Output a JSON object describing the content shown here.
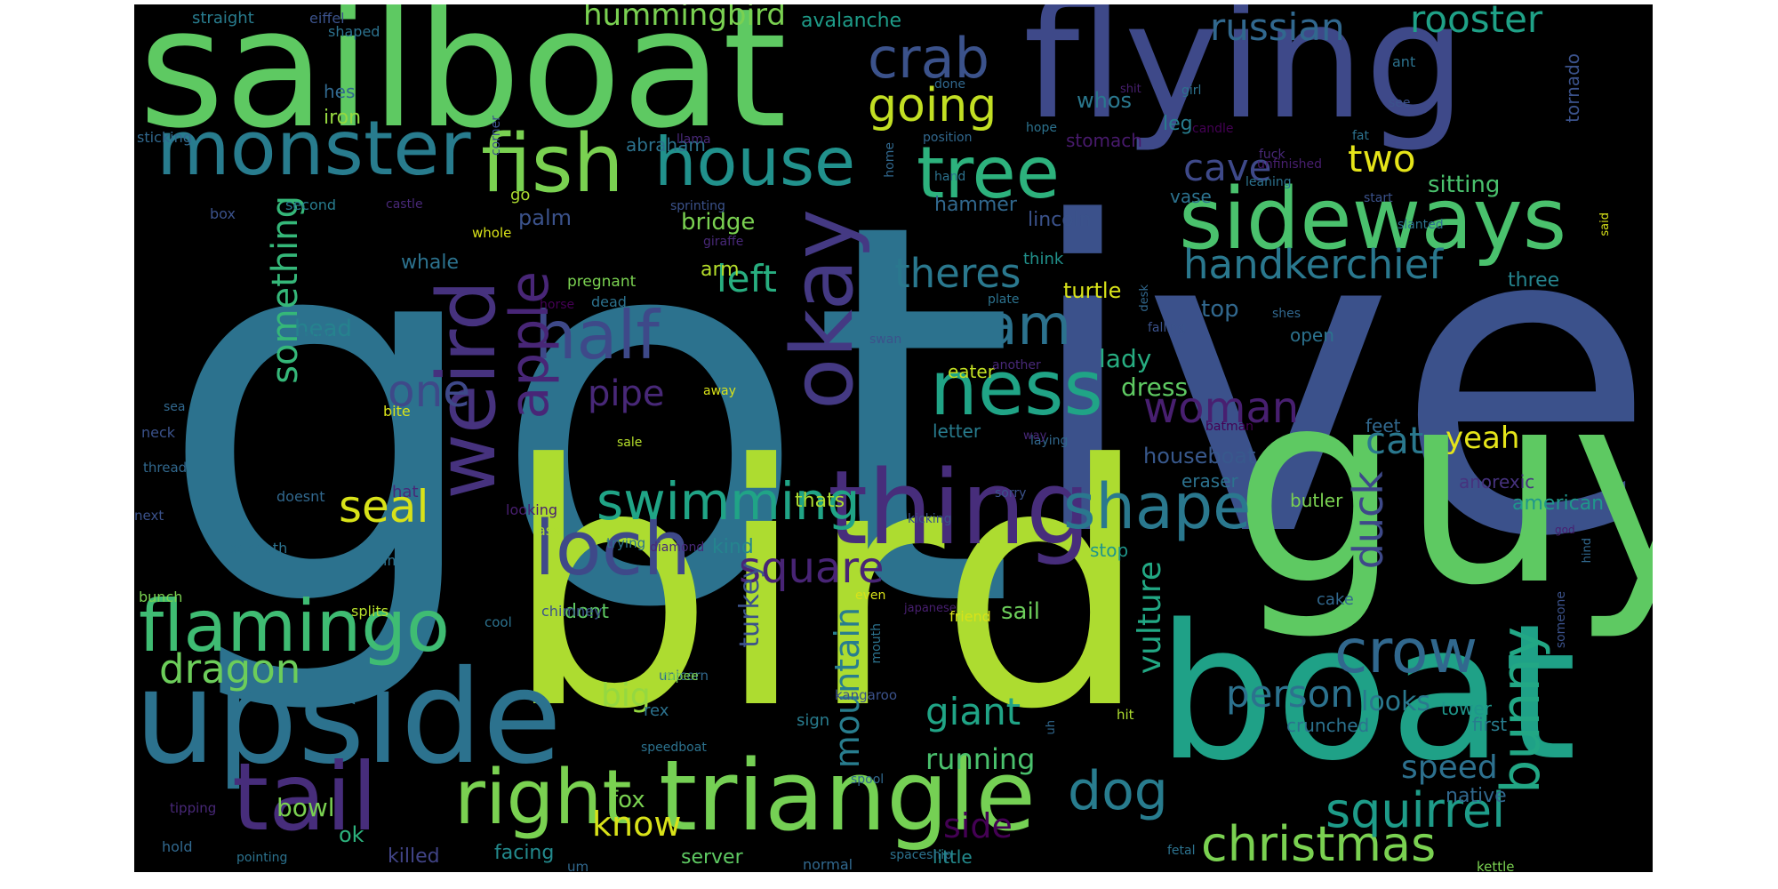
{
  "word_cloud": {
    "background": "#000000",
    "palette": [
      "#440154",
      "#482878",
      "#3e4a89",
      "#31688e",
      "#26828e",
      "#1f9e89",
      "#35b779",
      "#6ece58",
      "#b5de2b",
      "#fde725"
    ],
    "words": [
      {
        "text": "got",
        "color": "#2c728e"
      },
      {
        "text": "ive",
        "color": "#3b518b"
      },
      {
        "text": "bird",
        "color": "#addc30"
      },
      {
        "text": "guy",
        "color": "#5ec962"
      },
      {
        "text": "boat",
        "color": "#1fa187"
      },
      {
        "text": "sailboat",
        "color": "#5ec962"
      },
      {
        "text": "flying",
        "color": "#3e4989"
      },
      {
        "text": "upside",
        "color": "#2c728e"
      },
      {
        "text": "triangle",
        "color": "#75d054"
      },
      {
        "text": "thing",
        "color": "#472d7b"
      },
      {
        "text": "tail",
        "color": "#472d7b"
      },
      {
        "text": "monster",
        "color": "#287c8e"
      },
      {
        "text": "fish",
        "color": "#7ad151"
      },
      {
        "text": "house",
        "color": "#21918c"
      },
      {
        "text": "sideways",
        "color": "#4ac16d"
      },
      {
        "text": "tree",
        "color": "#2db27d"
      },
      {
        "text": "flamingo",
        "color": "#3fbc73"
      },
      {
        "text": "right",
        "color": "#7ad151"
      },
      {
        "text": "loch",
        "color": "#3e4989"
      },
      {
        "text": "okay",
        "color": "#443983"
      },
      {
        "text": "weird",
        "color": "#46327e"
      },
      {
        "text": "ness",
        "color": "#20a486"
      },
      {
        "text": "crow",
        "color": "#31688e"
      },
      {
        "text": "half",
        "color": "#3e4989"
      },
      {
        "text": "shape",
        "color": "#2a788e"
      },
      {
        "text": "crab",
        "color": "#3b528b"
      },
      {
        "text": "swimming",
        "color": "#20a486"
      },
      {
        "text": "apple",
        "color": "#482677"
      },
      {
        "text": "dog",
        "color": "#287c8e"
      },
      {
        "text": "christmas",
        "color": "#7ad151"
      },
      {
        "text": "squirrel",
        "color": "#1e9c89"
      },
      {
        "text": "going",
        "color": "#c2df23"
      },
      {
        "text": "handkerchief",
        "color": "#2a788e"
      },
      {
        "text": "ram",
        "color": "#2c728e"
      },
      {
        "text": "one",
        "color": "#3e4989"
      },
      {
        "text": "square",
        "color": "#482475"
      },
      {
        "text": "seal",
        "color": "#d8e219"
      },
      {
        "text": "dragon",
        "color": "#6ccd5a"
      },
      {
        "text": "bunny",
        "color": "#22a785"
      },
      {
        "text": "theres",
        "color": "#2a788e"
      },
      {
        "text": "russian",
        "color": "#31688e"
      },
      {
        "text": "rooster",
        "color": "#1fa187"
      },
      {
        "text": "woman",
        "color": "#481f70"
      },
      {
        "text": "something",
        "color": "#35b779"
      },
      {
        "text": "pipe",
        "color": "#482878"
      },
      {
        "text": "person",
        "color": "#2c728e"
      },
      {
        "text": "big",
        "color": "#95d840"
      },
      {
        "text": "giant",
        "color": "#20a486"
      },
      {
        "text": "two",
        "color": "#e5e419"
      },
      {
        "text": "cave",
        "color": "#3e4989"
      },
      {
        "text": "left",
        "color": "#28ae80"
      },
      {
        "text": "know",
        "color": "#d8e219"
      },
      {
        "text": "duck",
        "color": "#3e4989"
      },
      {
        "text": "speed",
        "color": "#2d708e"
      },
      {
        "text": "cat",
        "color": "#2a788e"
      },
      {
        "text": "mountain",
        "color": "#287d8e"
      },
      {
        "text": "running",
        "color": "#4ac16d"
      },
      {
        "text": "vulture",
        "color": "#22a884"
      },
      {
        "text": "side",
        "color": "#440154"
      },
      {
        "text": "hummingbird",
        "color": "#7ad151"
      },
      {
        "text": "yeah",
        "color": "#e5e419"
      },
      {
        "text": "turkey",
        "color": "#3b528b"
      },
      {
        "text": "lady",
        "color": "#27ad81"
      },
      {
        "text": "dress",
        "color": "#5ec962"
      },
      {
        "text": "looks",
        "color": "#2a788e"
      },
      {
        "text": "sitting",
        "color": "#4ac16d"
      },
      {
        "text": "top",
        "color": "#31688e"
      },
      {
        "text": "palm",
        "color": "#3b528b"
      },
      {
        "text": "head",
        "color": "#26828e"
      },
      {
        "text": "whale",
        "color": "#2c728e"
      },
      {
        "text": "bowl",
        "color": "#7ad151"
      },
      {
        "text": "sail",
        "color": "#6ccd5a"
      },
      {
        "text": "turtle",
        "color": "#d8e219"
      },
      {
        "text": "bridge",
        "color": "#7ad151"
      },
      {
        "text": "fox",
        "color": "#7ad151"
      },
      {
        "text": "houseboat",
        "color": "#38588c"
      },
      {
        "text": "hammer",
        "color": "#31688e"
      },
      {
        "text": "ok",
        "color": "#2db27d"
      },
      {
        "text": "killed",
        "color": "#414487"
      },
      {
        "text": "facing",
        "color": "#238a8d"
      },
      {
        "text": "server",
        "color": "#5ec962"
      },
      {
        "text": "avalanche",
        "color": "#1e9c89"
      },
      {
        "text": "arm",
        "color": "#b5de2b"
      },
      {
        "text": "kind",
        "color": "#25848e"
      },
      {
        "text": "dont",
        "color": "#5ec962"
      },
      {
        "text": "thats",
        "color": "#addc30"
      },
      {
        "text": "american",
        "color": "#1f968b"
      },
      {
        "text": "native",
        "color": "#31688e"
      },
      {
        "text": "eater",
        "color": "#c2df23"
      },
      {
        "text": "whos",
        "color": "#2a788e"
      },
      {
        "text": "leg",
        "color": "#287d8e"
      },
      {
        "text": "stomach",
        "color": "#481a6c"
      },
      {
        "text": "lincoln",
        "color": "#3b528b"
      },
      {
        "text": "vase",
        "color": "#2c728e"
      },
      {
        "text": "three",
        "color": "#25848e"
      },
      {
        "text": "open",
        "color": "#2c728e"
      },
      {
        "text": "feet",
        "color": "#31688e"
      },
      {
        "text": "anorexic",
        "color": "#46327e"
      },
      {
        "text": "butler",
        "color": "#7ad151"
      },
      {
        "text": "eraser",
        "color": "#2c728e"
      },
      {
        "text": "stop",
        "color": "#1f968b"
      },
      {
        "text": "little",
        "color": "#238a8d"
      },
      {
        "text": "letter",
        "color": "#287c8e"
      },
      {
        "text": "iron",
        "color": "#95d840"
      },
      {
        "text": "hes",
        "color": "#31688e"
      },
      {
        "text": "abraham",
        "color": "#2c728e"
      },
      {
        "text": "tornado",
        "color": "#3b528b"
      },
      {
        "text": "first",
        "color": "#287c8e"
      },
      {
        "text": "tower",
        "color": "#1f968b"
      },
      {
        "text": "crunched",
        "color": "#2c728e"
      },
      {
        "text": "cake",
        "color": "#31688e"
      },
      {
        "text": "rex",
        "color": "#2c728e"
      },
      {
        "text": "sign",
        "color": "#287c8e"
      },
      {
        "text": "think",
        "color": "#21918c"
      },
      {
        "text": "hat",
        "color": "#482878"
      },
      {
        "text": "straight",
        "color": "#287c8e"
      },
      {
        "text": "eiffel",
        "color": "#3b528b"
      },
      {
        "text": "shaped",
        "color": "#2c728e"
      },
      {
        "text": "second",
        "color": "#287c8e"
      },
      {
        "text": "box",
        "color": "#3b528b"
      },
      {
        "text": "sticking",
        "color": "#31688e"
      },
      {
        "text": "castle",
        "color": "#482878"
      },
      {
        "text": "whole",
        "color": "#d8e219"
      },
      {
        "text": "go",
        "color": "#addc30"
      },
      {
        "text": "giraffe",
        "color": "#482878"
      },
      {
        "text": "pregnant",
        "color": "#7ad151"
      },
      {
        "text": "horse",
        "color": "#440154"
      },
      {
        "text": "dead",
        "color": "#2c728e"
      },
      {
        "text": "now",
        "color": "#2c728e"
      },
      {
        "text": "sea",
        "color": "#31688e"
      },
      {
        "text": "neck",
        "color": "#3b528b"
      },
      {
        "text": "bite",
        "color": "#d8e219"
      },
      {
        "text": "thread",
        "color": "#31688e"
      },
      {
        "text": "next",
        "color": "#3b528b"
      },
      {
        "text": "doesnt",
        "color": "#31688e"
      },
      {
        "text": "looking",
        "color": "#481f70"
      },
      {
        "text": "ass",
        "color": "#addc30"
      },
      {
        "text": "trying",
        "color": "#2c728e"
      },
      {
        "text": "diamond",
        "color": "#482878"
      },
      {
        "text": "beneath",
        "color": "#2c728e"
      },
      {
        "text": "im",
        "color": "#2c728e"
      },
      {
        "text": "bunch",
        "color": "#7ad151"
      },
      {
        "text": "splits",
        "color": "#b5de2b"
      },
      {
        "text": "cool",
        "color": "#2c728e"
      },
      {
        "text": "chimney",
        "color": "#3b528b"
      },
      {
        "text": "unicorn",
        "color": "#31688e"
      },
      {
        "text": "rupee",
        "color": "#7ad151"
      },
      {
        "text": "speedboat",
        "color": "#2c728e"
      },
      {
        "text": "tipping",
        "color": "#482878"
      },
      {
        "text": "hold",
        "color": "#31688e"
      },
      {
        "text": "pointing",
        "color": "#2c728e"
      },
      {
        "text": "um",
        "color": "#31688e"
      },
      {
        "text": "normal",
        "color": "#31688e"
      },
      {
        "text": "spaceship",
        "color": "#2c728e"
      },
      {
        "text": "fetal",
        "color": "#2c728e"
      },
      {
        "text": "kettle",
        "color": "#7ad151"
      },
      {
        "text": "spool",
        "color": "#31688e"
      },
      {
        "text": "kangaroo",
        "color": "#3b528b"
      },
      {
        "text": "hit",
        "color": "#addc30"
      },
      {
        "text": "even",
        "color": "#d8e219"
      },
      {
        "text": "japanese",
        "color": "#481f70"
      },
      {
        "text": "friend",
        "color": "#d8e219"
      },
      {
        "text": "mouth",
        "color": "#2c728e"
      },
      {
        "text": "uh",
        "color": "#31688e"
      },
      {
        "text": "someone",
        "color": "#3b528b"
      },
      {
        "text": "hind",
        "color": "#31688e"
      },
      {
        "text": "god",
        "color": "#481f70"
      },
      {
        "text": "kicking",
        "color": "#3b528b"
      },
      {
        "text": "sorry",
        "color": "#3b528b"
      },
      {
        "text": "laying",
        "color": "#31688e"
      },
      {
        "text": "batman",
        "color": "#440154"
      },
      {
        "text": "shes",
        "color": "#31688e"
      },
      {
        "text": "falling",
        "color": "#3b528b"
      },
      {
        "text": "another",
        "color": "#482878"
      },
      {
        "text": "away",
        "color": "#d8e219"
      },
      {
        "text": "plate",
        "color": "#2c728e"
      },
      {
        "text": "swan",
        "color": "#3b528b"
      },
      {
        "text": "desk",
        "color": "#31688e"
      },
      {
        "text": "slanted",
        "color": "#2c728e"
      },
      {
        "text": "start",
        "color": "#3b528b"
      },
      {
        "text": "leaning",
        "color": "#2c728e"
      },
      {
        "text": "unfinished",
        "color": "#481f70"
      },
      {
        "text": "candle",
        "color": "#440154"
      },
      {
        "text": "fuck",
        "color": "#482878"
      },
      {
        "text": "fat",
        "color": "#2c728e"
      },
      {
        "text": "see",
        "color": "#3b528b"
      },
      {
        "text": "hope",
        "color": "#2c728e"
      },
      {
        "text": "done",
        "color": "#31688e"
      },
      {
        "text": "shit",
        "color": "#481f70"
      },
      {
        "text": "corner",
        "color": "#3b528b"
      },
      {
        "text": "girl",
        "color": "#2c728e"
      },
      {
        "text": "llama",
        "color": "#482878"
      },
      {
        "text": "position",
        "color": "#31688e"
      },
      {
        "text": "hand",
        "color": "#2c728e"
      },
      {
        "text": "sprinting",
        "color": "#3b528b"
      },
      {
        "text": "home",
        "color": "#31688e"
      },
      {
        "text": "said",
        "color": "#d8e219"
      },
      {
        "text": "ant",
        "color": "#2c728e"
      },
      {
        "text": "sale",
        "color": "#b5de2b"
      },
      {
        "text": "way",
        "color": "#482878"
      },
      {
        "text": "eiffel2",
        "color": "#3b528b"
      }
    ]
  }
}
